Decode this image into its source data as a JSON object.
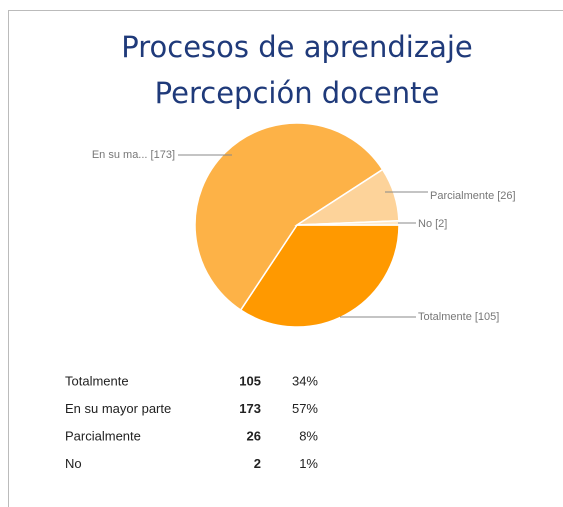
{
  "chart_data": {
    "type": "pie",
    "title": [
      "Procesos de aprendizaje",
      "Percepción docente"
    ],
    "categories": [
      "Totalmente",
      "En su mayor parte",
      "Parcialmente",
      "No"
    ],
    "values": [
      105,
      173,
      26,
      2
    ],
    "labels": [
      "Totalmente [105]",
      "En su ma... [173]",
      "Parcialmente [26]",
      "No [2]"
    ],
    "percentages": [
      "34%",
      "57%",
      "8%",
      "1%"
    ],
    "colors": [
      "#ff9900",
      "#fdb247",
      "#fdd39a",
      "#fde9cc"
    ]
  }
}
